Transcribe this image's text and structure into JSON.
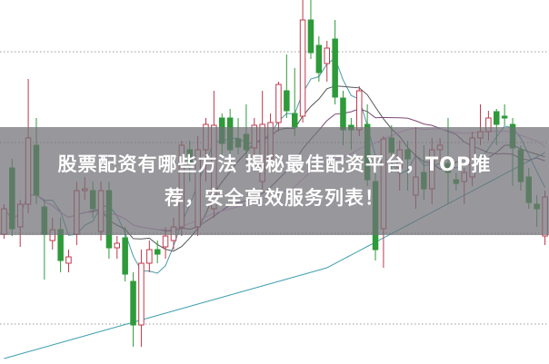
{
  "title": {
    "line1": "股票配资有哪些方法 揭秘最佳配资平台，TOP推",
    "line2": "荐，安全高效服务列表！"
  },
  "colors": {
    "up": "#c0394b",
    "down": "#2e9a3a",
    "banner": "#707076",
    "grid": "#9a9a9a",
    "ma_lines": [
      "#4a9aa8",
      "#555555",
      "#7a4a7a",
      "#e4a0e8",
      "#3f9fb0"
    ]
  },
  "chart_data": {
    "type": "candlestick",
    "title": "",
    "xlabel": "",
    "ylabel": "",
    "ylim": [
      0,
      400
    ],
    "grid": true,
    "candle_fields": [
      "open",
      "high",
      "low",
      "close"
    ],
    "candles": [
      [
        142,
        175,
        137,
        170
      ],
      [
        215,
        225,
        140,
        148
      ],
      [
        150,
        180,
        128,
        175
      ],
      [
        175,
        313,
        165,
        248
      ],
      [
        240,
        270,
        175,
        185
      ],
      [
        172,
        180,
        92,
        142
      ],
      [
        135,
        160,
        125,
        147
      ],
      [
        147,
        160,
        100,
        113
      ],
      [
        110,
        125,
        100,
        117
      ],
      [
        142,
        200,
        130,
        190
      ],
      [
        190,
        205,
        180,
        192
      ],
      [
        190,
        200,
        160,
        170
      ],
      [
        145,
        200,
        135,
        190
      ],
      [
        190,
        200,
        115,
        127
      ],
      [
        127,
        140,
        115,
        132
      ],
      [
        138,
        150,
        90,
        98
      ],
      [
        90,
        100,
        18,
        42
      ],
      [
        42,
        125,
        18,
        110
      ],
      [
        110,
        135,
        100,
        125
      ],
      [
        125,
        135,
        110,
        120
      ],
      [
        128,
        150,
        115,
        140
      ],
      [
        135,
        160,
        125,
        150
      ],
      [
        150,
        245,
        140,
        240
      ],
      [
        235,
        245,
        200,
        220
      ],
      [
        150,
        250,
        140,
        235
      ],
      [
        235,
        270,
        200,
        263
      ],
      [
        170,
        300,
        160,
        262
      ],
      [
        270,
        275,
        230,
        242
      ],
      [
        270,
        280,
        220,
        235
      ],
      [
        247,
        270,
        230,
        238
      ],
      [
        252,
        285,
        220,
        235
      ],
      [
        237,
        270,
        225,
        262
      ],
      [
        200,
        300,
        190,
        263
      ],
      [
        225,
        275,
        215,
        265
      ],
      [
        265,
        310,
        255,
        307
      ],
      [
        300,
        340,
        270,
        278
      ],
      [
        275,
        325,
        250,
        260
      ],
      [
        272,
        400,
        265,
        378
      ],
      [
        378,
        400,
        335,
        342
      ],
      [
        350,
        360,
        310,
        320
      ],
      [
        330,
        355,
        310,
        347
      ],
      [
        357,
        378,
        285,
        293
      ],
      [
        292,
        300,
        240,
        257
      ],
      [
        262,
        270,
        235,
        257
      ],
      [
        257,
        305,
        250,
        300
      ],
      [
        263,
        285,
        195,
        202
      ],
      [
        200,
        210,
        113,
        125
      ],
      [
        148,
        250,
        105,
        247
      ],
      [
        248,
        262,
        210,
        232
      ],
      [
        215,
        245,
        190,
        235
      ],
      [
        235,
        245,
        190,
        225
      ],
      [
        185,
        260,
        170,
        205
      ],
      [
        210,
        240,
        180,
        192
      ],
      [
        192,
        248,
        175,
        235
      ],
      [
        235,
        248,
        220,
        240
      ],
      [
        220,
        270,
        175,
        210
      ],
      [
        202,
        210,
        190,
        198
      ],
      [
        200,
        215,
        175,
        210
      ],
      [
        205,
        255,
        195,
        248
      ],
      [
        248,
        285,
        240,
        255
      ],
      [
        255,
        278,
        245,
        270
      ],
      [
        277,
        280,
        240,
        263
      ],
      [
        272,
        285,
        262,
        270
      ],
      [
        263,
        270,
        195,
        237
      ],
      [
        235,
        240,
        190,
        200
      ],
      [
        205,
        215,
        170,
        177
      ],
      [
        175,
        185,
        150,
        170
      ],
      [
        140,
        190,
        130,
        183
      ]
    ]
  }
}
